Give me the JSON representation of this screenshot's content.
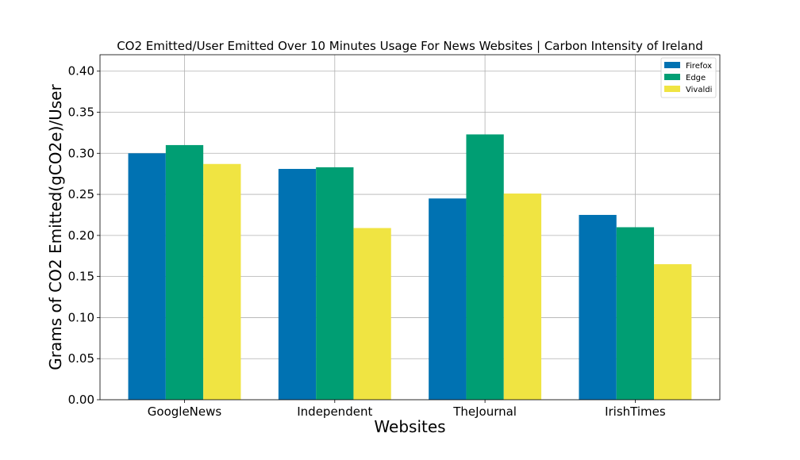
{
  "chart_data": {
    "type": "bar",
    "title": "CO2 Emitted/User Emitted Over 10 Minutes Usage For News Websites | Carbon Intensity of Ireland",
    "xlabel": "Websites",
    "ylabel": "Grams of CO2 Emitted(gCO2e)/User",
    "categories": [
      "GoogleNews",
      "Independent",
      "TheJournal",
      "IrishTimes"
    ],
    "series": [
      {
        "name": "Firefox",
        "color": "#0072b2",
        "values": [
          0.3,
          0.281,
          0.245,
          0.225
        ]
      },
      {
        "name": "Edge",
        "color": "#009e73",
        "values": [
          0.31,
          0.283,
          0.323,
          0.21
        ]
      },
      {
        "name": "Vivaldi",
        "color": "#f0e442",
        "values": [
          0.287,
          0.209,
          0.251,
          0.165
        ]
      }
    ],
    "ylim": [
      0,
      0.42
    ],
    "yticks": [
      "0.00",
      "0.05",
      "0.10",
      "0.15",
      "0.20",
      "0.25",
      "0.30",
      "0.35",
      "0.40"
    ],
    "grid": true,
    "legend_position": "top-right"
  }
}
